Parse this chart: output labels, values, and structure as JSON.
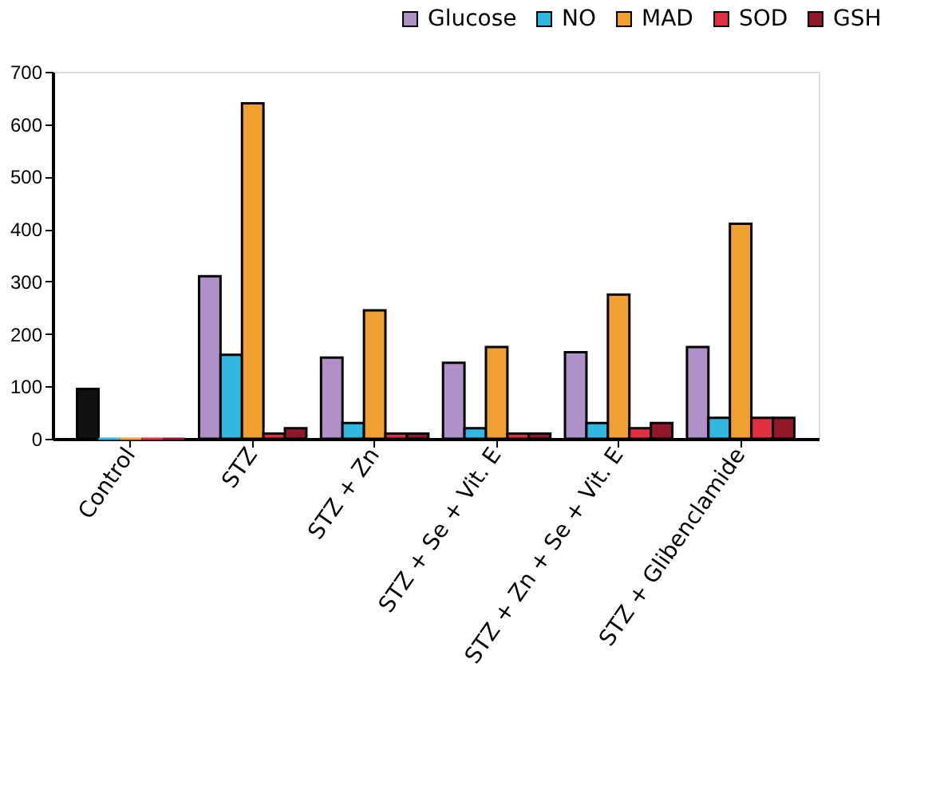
{
  "chart_data": {
    "type": "bar",
    "categories": [
      "Control",
      "STZ",
      "STZ + Zn",
      "STZ + Se + Vit. E",
      "STZ + Zn + Se + Vit. E",
      "STZ + Glibenclamide"
    ],
    "series": [
      {
        "name": "Glucose",
        "color": "#b090c8",
        "colors": [
          "#111111",
          "#b090c8",
          "#b090c8",
          "#b090c8",
          "#b090c8",
          "#b090c8"
        ],
        "values": [
          95,
          310,
          155,
          145,
          165,
          175
        ]
      },
      {
        "name": "NO",
        "color": "#30b8e0",
        "values": [
          0,
          160,
          30,
          20,
          30,
          40
        ]
      },
      {
        "name": "MAD",
        "color": "#f0a030",
        "values": [
          0,
          640,
          245,
          175,
          275,
          410
        ]
      },
      {
        "name": "SOD",
        "color": "#e03040",
        "values": [
          0,
          10,
          10,
          10,
          20,
          40
        ]
      },
      {
        "name": "GSH",
        "color": "#901828",
        "values": [
          0,
          20,
          10,
          10,
          30,
          40
        ]
      }
    ],
    "ylim": [
      0,
      700
    ],
    "yticks": [
      0,
      100,
      200,
      300,
      400,
      500,
      600,
      700
    ],
    "grid": false,
    "legend": "top right"
  }
}
